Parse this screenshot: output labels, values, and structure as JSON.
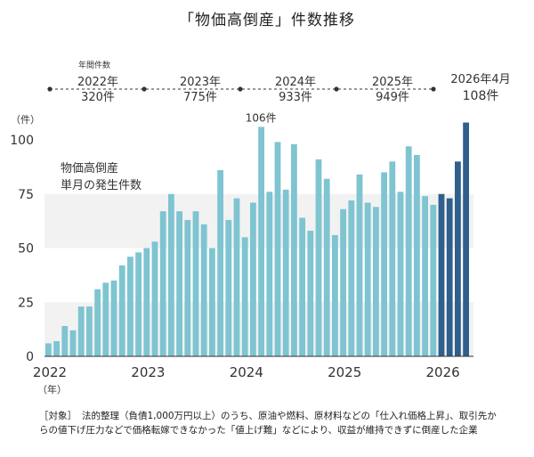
{
  "title": "「物価高倒産」件数推移",
  "annual_caption": "年間件数",
  "annual": [
    {
      "year": "2022年",
      "count": "320件"
    },
    {
      "year": "2023年",
      "count": "775件"
    },
    {
      "year": "2024年",
      "count": "933件"
    },
    {
      "year": "2025年",
      "count": "949件"
    },
    {
      "year": "2026年4月",
      "count": "108件"
    }
  ],
  "chart_label": [
    "物価高倒産",
    "単月の発生件数"
  ],
  "peak_label": "106件",
  "footnote": {
    "tag": "［対象］",
    "text": "法的整理（負債1,000万円以上）のうち、原油や燃料、原材料などの「仕入れ価格上昇」、取引先からの値下げ圧力などで価格転嫁できなかった「値上げ難」などにより、収益が維持できずに倒産した企業"
  },
  "colors": {
    "bar": "#7ec4d1",
    "bar_2026": "#2f5f8c",
    "band": "#f2f2f2"
  },
  "chart_data": {
    "type": "bar",
    "ylabel": "（件）",
    "xlabel": "（年）",
    "ylim": [
      0,
      110
    ],
    "yticks": [
      0,
      25,
      50,
      75,
      100
    ],
    "xticks": [
      "2022",
      "2023",
      "2024",
      "2025",
      "2026"
    ],
    "grid": false,
    "series": [
      {
        "values": [
          6,
          7,
          14,
          12,
          23,
          23,
          31,
          34,
          35,
          42,
          46,
          48,
          50,
          53,
          67,
          75,
          67,
          63,
          67,
          61,
          50,
          86,
          63,
          73,
          55,
          71,
          106,
          76,
          99,
          77,
          98,
          64,
          58,
          91,
          82,
          56,
          68,
          72,
          84,
          71,
          69,
          85,
          90,
          76,
          97,
          93,
          74,
          70,
          75,
          73,
          90,
          108
        ]
      }
    ]
  }
}
